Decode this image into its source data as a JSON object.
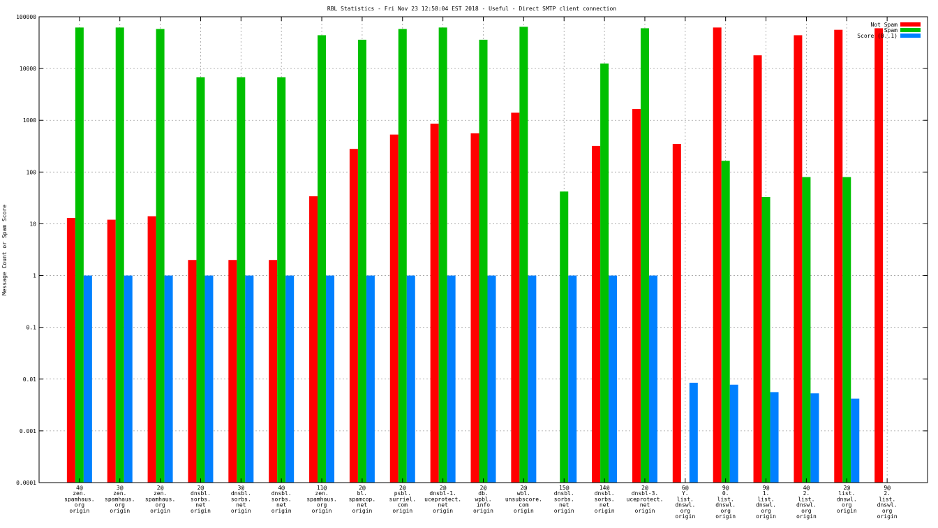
{
  "chart_data": {
    "type": "bar",
    "title": "RBL Statistics - Fri Nov 23 12:58:04 EST 2018 - Useful - Direct SMTP client connection",
    "xlabel": "",
    "ylabel": "Message Count or Spam Score",
    "yscale": "log",
    "ylim": [
      0.0001,
      100000
    ],
    "yticks": [
      "0.0001",
      "0.001",
      "0.01",
      "0.1",
      "1",
      "10",
      "100",
      "1000",
      "10000",
      "100000"
    ],
    "grid": true,
    "legend_position": "top-right",
    "categories": [
      [
        "4@",
        "zen.",
        "spamhaus.",
        "org",
        "origin"
      ],
      [
        "3@",
        "zen.",
        "spamhaus.",
        "org",
        "origin"
      ],
      [
        "2@",
        "zen.",
        "spamhaus.",
        "org",
        "origin"
      ],
      [
        "2@",
        "dnsbl.",
        "sorbs.",
        "net",
        "origin"
      ],
      [
        "3@",
        "dnsbl.",
        "sorbs.",
        "net",
        "origin"
      ],
      [
        "4@",
        "dnsbl.",
        "sorbs.",
        "net",
        "origin"
      ],
      [
        "11@",
        "zen.",
        "spamhaus.",
        "org",
        "origin"
      ],
      [
        "2@",
        "bl.",
        "spamcop.",
        "net",
        "origin"
      ],
      [
        "2@",
        "psbl.",
        "surriel.",
        "com",
        "origin"
      ],
      [
        "2@",
        "dnsbl-1.",
        "uceprotect.",
        "net",
        "origin"
      ],
      [
        "2@",
        "db.",
        "wpbl.",
        "info",
        "origin"
      ],
      [
        "2@",
        "wbl.",
        "unsubscore.",
        "com",
        "origin"
      ],
      [
        "15@",
        "dnsbl.",
        "sorbs.",
        "net",
        "origin"
      ],
      [
        "14@",
        "dnsbl.",
        "sorbs.",
        "net",
        "origin"
      ],
      [
        "2@",
        "dnsbl-3.",
        "uceprotect.",
        "net",
        "origin"
      ],
      [
        "6@",
        "Y.",
        "list.",
        "dnswl.",
        "org",
        "origin"
      ],
      [
        "9@",
        "0.",
        "list.",
        "dnswl.",
        "org",
        "origin"
      ],
      [
        "9@",
        "1.",
        "list.",
        "dnswl.",
        "org",
        "origin"
      ],
      [
        "4@",
        "2.",
        "list.",
        "dnswl.",
        "org",
        "origin"
      ],
      [
        "2@",
        "list.",
        "dnswl.",
        "org",
        "origin"
      ],
      [
        "9@",
        "2.",
        "list.",
        "dnswl.",
        "org",
        "origin"
      ]
    ],
    "series": [
      {
        "name": "Not Spam",
        "color": "#ff0000",
        "values": [
          13,
          12,
          14,
          2,
          2,
          2,
          34,
          280,
          530,
          860,
          560,
          1400,
          null,
          320,
          1650,
          350,
          62000,
          18000,
          44000,
          56000,
          60000
        ]
      },
      {
        "name": "Spam",
        "color": "#00c000",
        "values": [
          62000,
          62000,
          58000,
          6800,
          6800,
          6800,
          44000,
          36000,
          58000,
          62000,
          36000,
          64000,
          42,
          12500,
          60000,
          null,
          165,
          33,
          80,
          80,
          null
        ]
      },
      {
        "name": "Score (0..1)",
        "color": "#0080ff",
        "values": [
          1,
          1,
          1,
          1,
          1,
          1,
          1,
          1,
          1,
          1,
          1,
          1,
          1,
          1,
          1,
          0.0085,
          0.0078,
          0.0056,
          0.0053,
          0.0042,
          null
        ]
      }
    ]
  }
}
